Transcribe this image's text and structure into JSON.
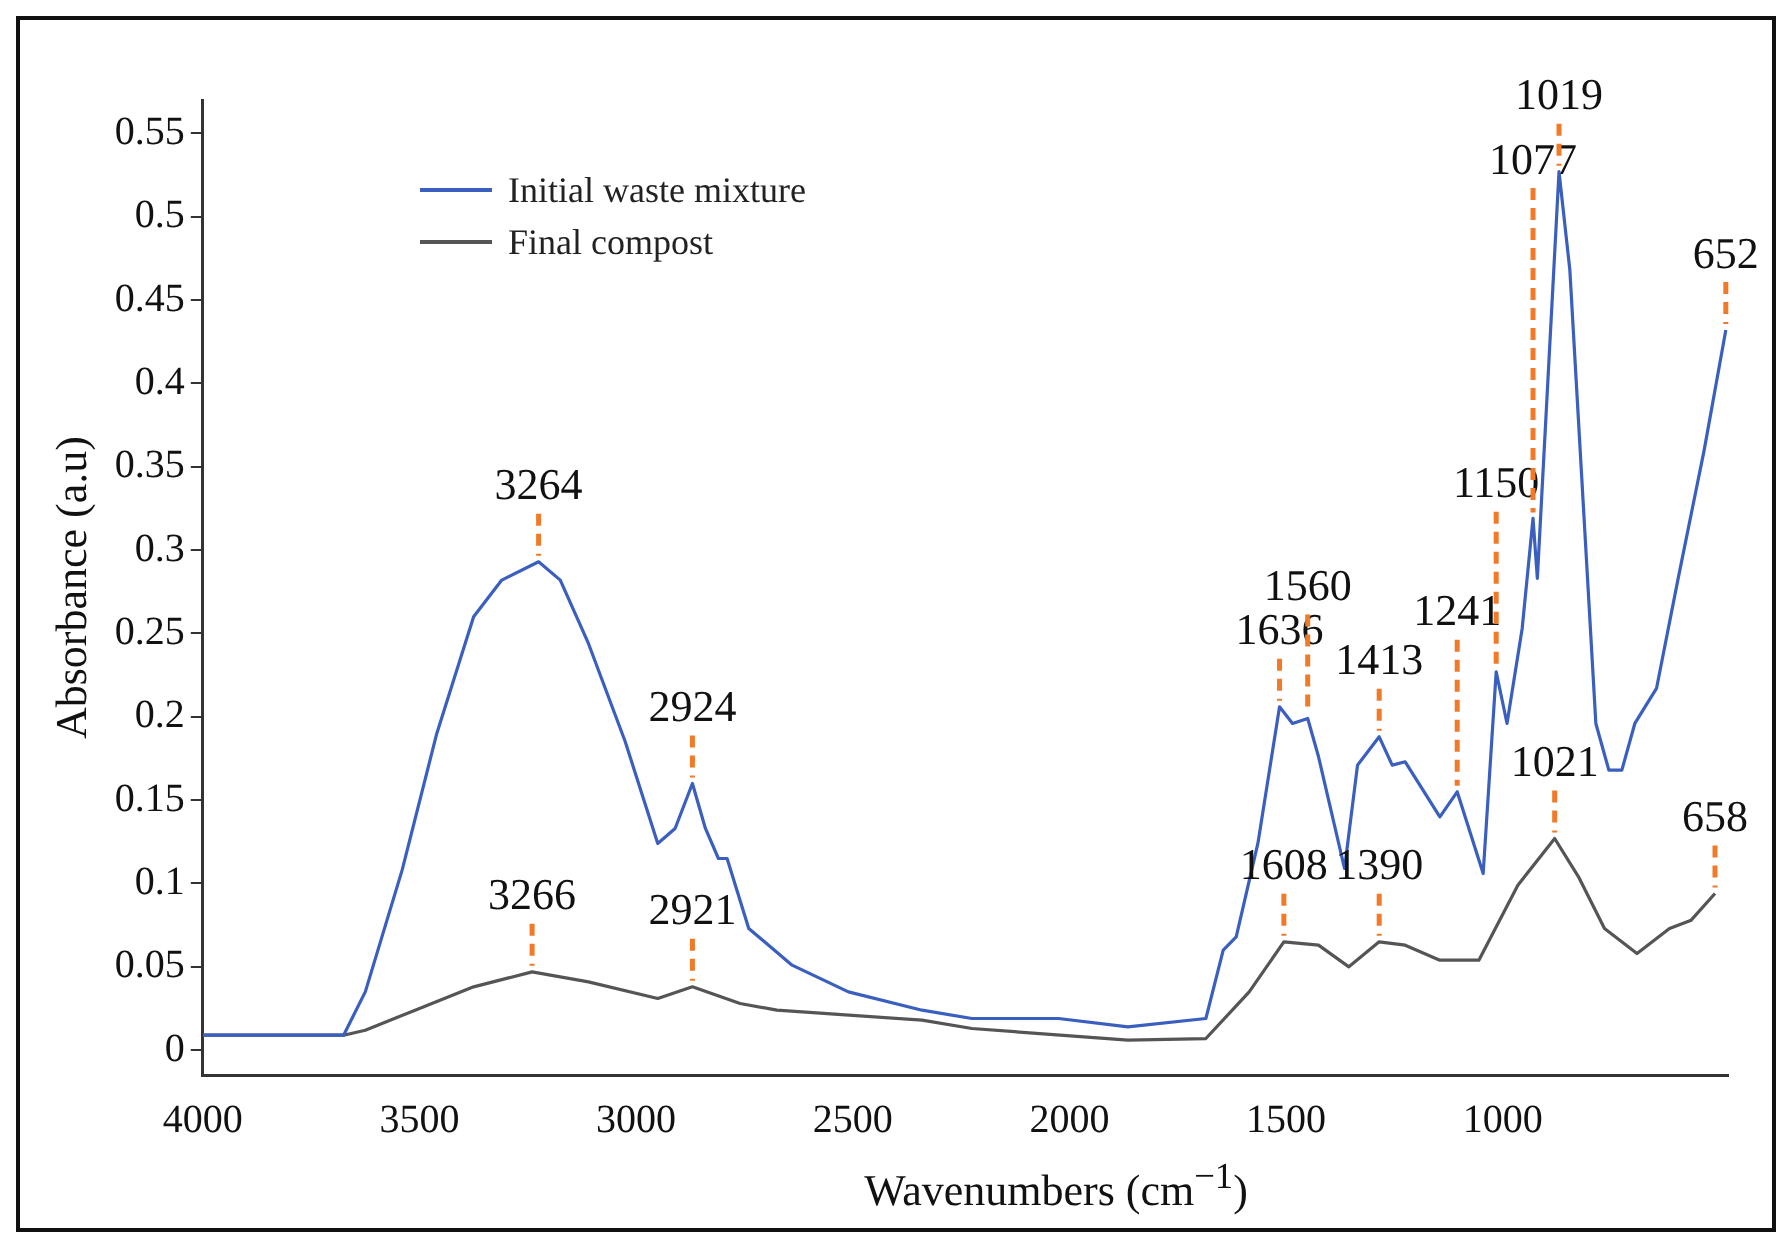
{
  "chart_data": {
    "type": "line",
    "xlabel": "Wavenumbers (cm$^{−1}$)",
    "ylabel": "Absorbance (a.u)",
    "xlim": [
      4000,
      480
    ],
    "ylim": [
      -0.015,
      0.57
    ],
    "xticks": [
      4000,
      3500,
      3000,
      2500,
      2000,
      1500,
      1000
    ],
    "yticks": [
      0,
      0.05,
      0.1,
      0.15,
      0.2,
      0.25,
      0.3,
      0.35,
      0.4,
      0.45,
      0.5,
      0.55
    ],
    "grid": false,
    "legend": "top left",
    "marker": "none",
    "line_style": "solid",
    "series": [
      {
        "name": "Initial waste mixture",
        "color": "#3a5fbf",
        "x": [
          4000,
          3675,
          3625,
          3540,
          3460,
          3375,
          3310,
          3225,
          3175,
          3110,
          3025,
          2950,
          2910,
          2870,
          2840,
          2810,
          2790,
          2740,
          2640,
          2510,
          2340,
          2225,
          2025,
          1865,
          1685,
          1645,
          1615,
          1565,
          1515,
          1485,
          1450,
          1425,
          1365,
          1335,
          1285,
          1255,
          1225,
          1145,
          1105,
          1045,
          1015,
          990,
          955,
          930,
          920,
          870,
          845,
          785,
          755,
          725,
          695,
          645,
          595,
          535,
          485
        ],
        "values": [
          0.009,
          0.009,
          0.035,
          0.108,
          0.19,
          0.26,
          0.282,
          0.293,
          0.282,
          0.244,
          0.185,
          0.124,
          0.133,
          0.16,
          0.133,
          0.115,
          0.115,
          0.073,
          0.051,
          0.035,
          0.024,
          0.019,
          0.019,
          0.014,
          0.019,
          0.06,
          0.068,
          0.124,
          0.206,
          0.196,
          0.199,
          0.176,
          0.109,
          0.171,
          0.188,
          0.171,
          0.173,
          0.14,
          0.155,
          0.106,
          0.227,
          0.196,
          0.253,
          0.319,
          0.283,
          0.527,
          0.468,
          0.196,
          0.168,
          0.168,
          0.196,
          0.217,
          0.283,
          0.36,
          0.432
        ]
      },
      {
        "name": "Final compost",
        "color": "#555555",
        "x": [
          4000,
          3675,
          3625,
          3510,
          3375,
          3240,
          3110,
          2950,
          2870,
          2760,
          2675,
          2340,
          2225,
          1865,
          1685,
          1585,
          1505,
          1425,
          1355,
          1285,
          1225,
          1145,
          1055,
          965,
          880,
          825,
          765,
          690,
          615,
          565,
          510
        ],
        "values": [
          0.009,
          0.009,
          0.012,
          0.024,
          0.038,
          0.047,
          0.041,
          0.031,
          0.038,
          0.028,
          0.024,
          0.018,
          0.013,
          0.006,
          0.007,
          0.035,
          0.065,
          0.063,
          0.05,
          0.065,
          0.063,
          0.054,
          0.054,
          0.099,
          0.127,
          0.104,
          0.073,
          0.058,
          0.073,
          0.078,
          0.094
        ]
      }
    ],
    "annotations": [
      {
        "text": "3264",
        "x": 3225,
        "y": 0.293
      },
      {
        "text": "2924",
        "x": 2870,
        "y": 0.16
      },
      {
        "text": "3266",
        "x": 3240,
        "y": 0.047
      },
      {
        "text": "2921",
        "x": 2870,
        "y": 0.038
      },
      {
        "text": "1636",
        "x": 1515,
        "y": 0.206
      },
      {
        "text": "1560",
        "x": 1450,
        "y": 0.199
      },
      {
        "text": "1413",
        "x": 1285,
        "y": 0.188
      },
      {
        "text": "1241",
        "x": 1105,
        "y": 0.155
      },
      {
        "text": "1150",
        "x": 1015,
        "y": 0.227
      },
      {
        "text": "1077",
        "x": 930,
        "y": 0.319
      },
      {
        "text": "1019",
        "x": 870,
        "y": 0.527
      },
      {
        "text": "652",
        "x": 485,
        "y": 0.432
      },
      {
        "text": "1608",
        "x": 1505,
        "y": 0.065
      },
      {
        "text": "1390",
        "x": 1285,
        "y": 0.065
      },
      {
        "text": "1021",
        "x": 880,
        "y": 0.127
      },
      {
        "text": "658",
        "x": 510,
        "y": 0.094
      }
    ]
  }
}
